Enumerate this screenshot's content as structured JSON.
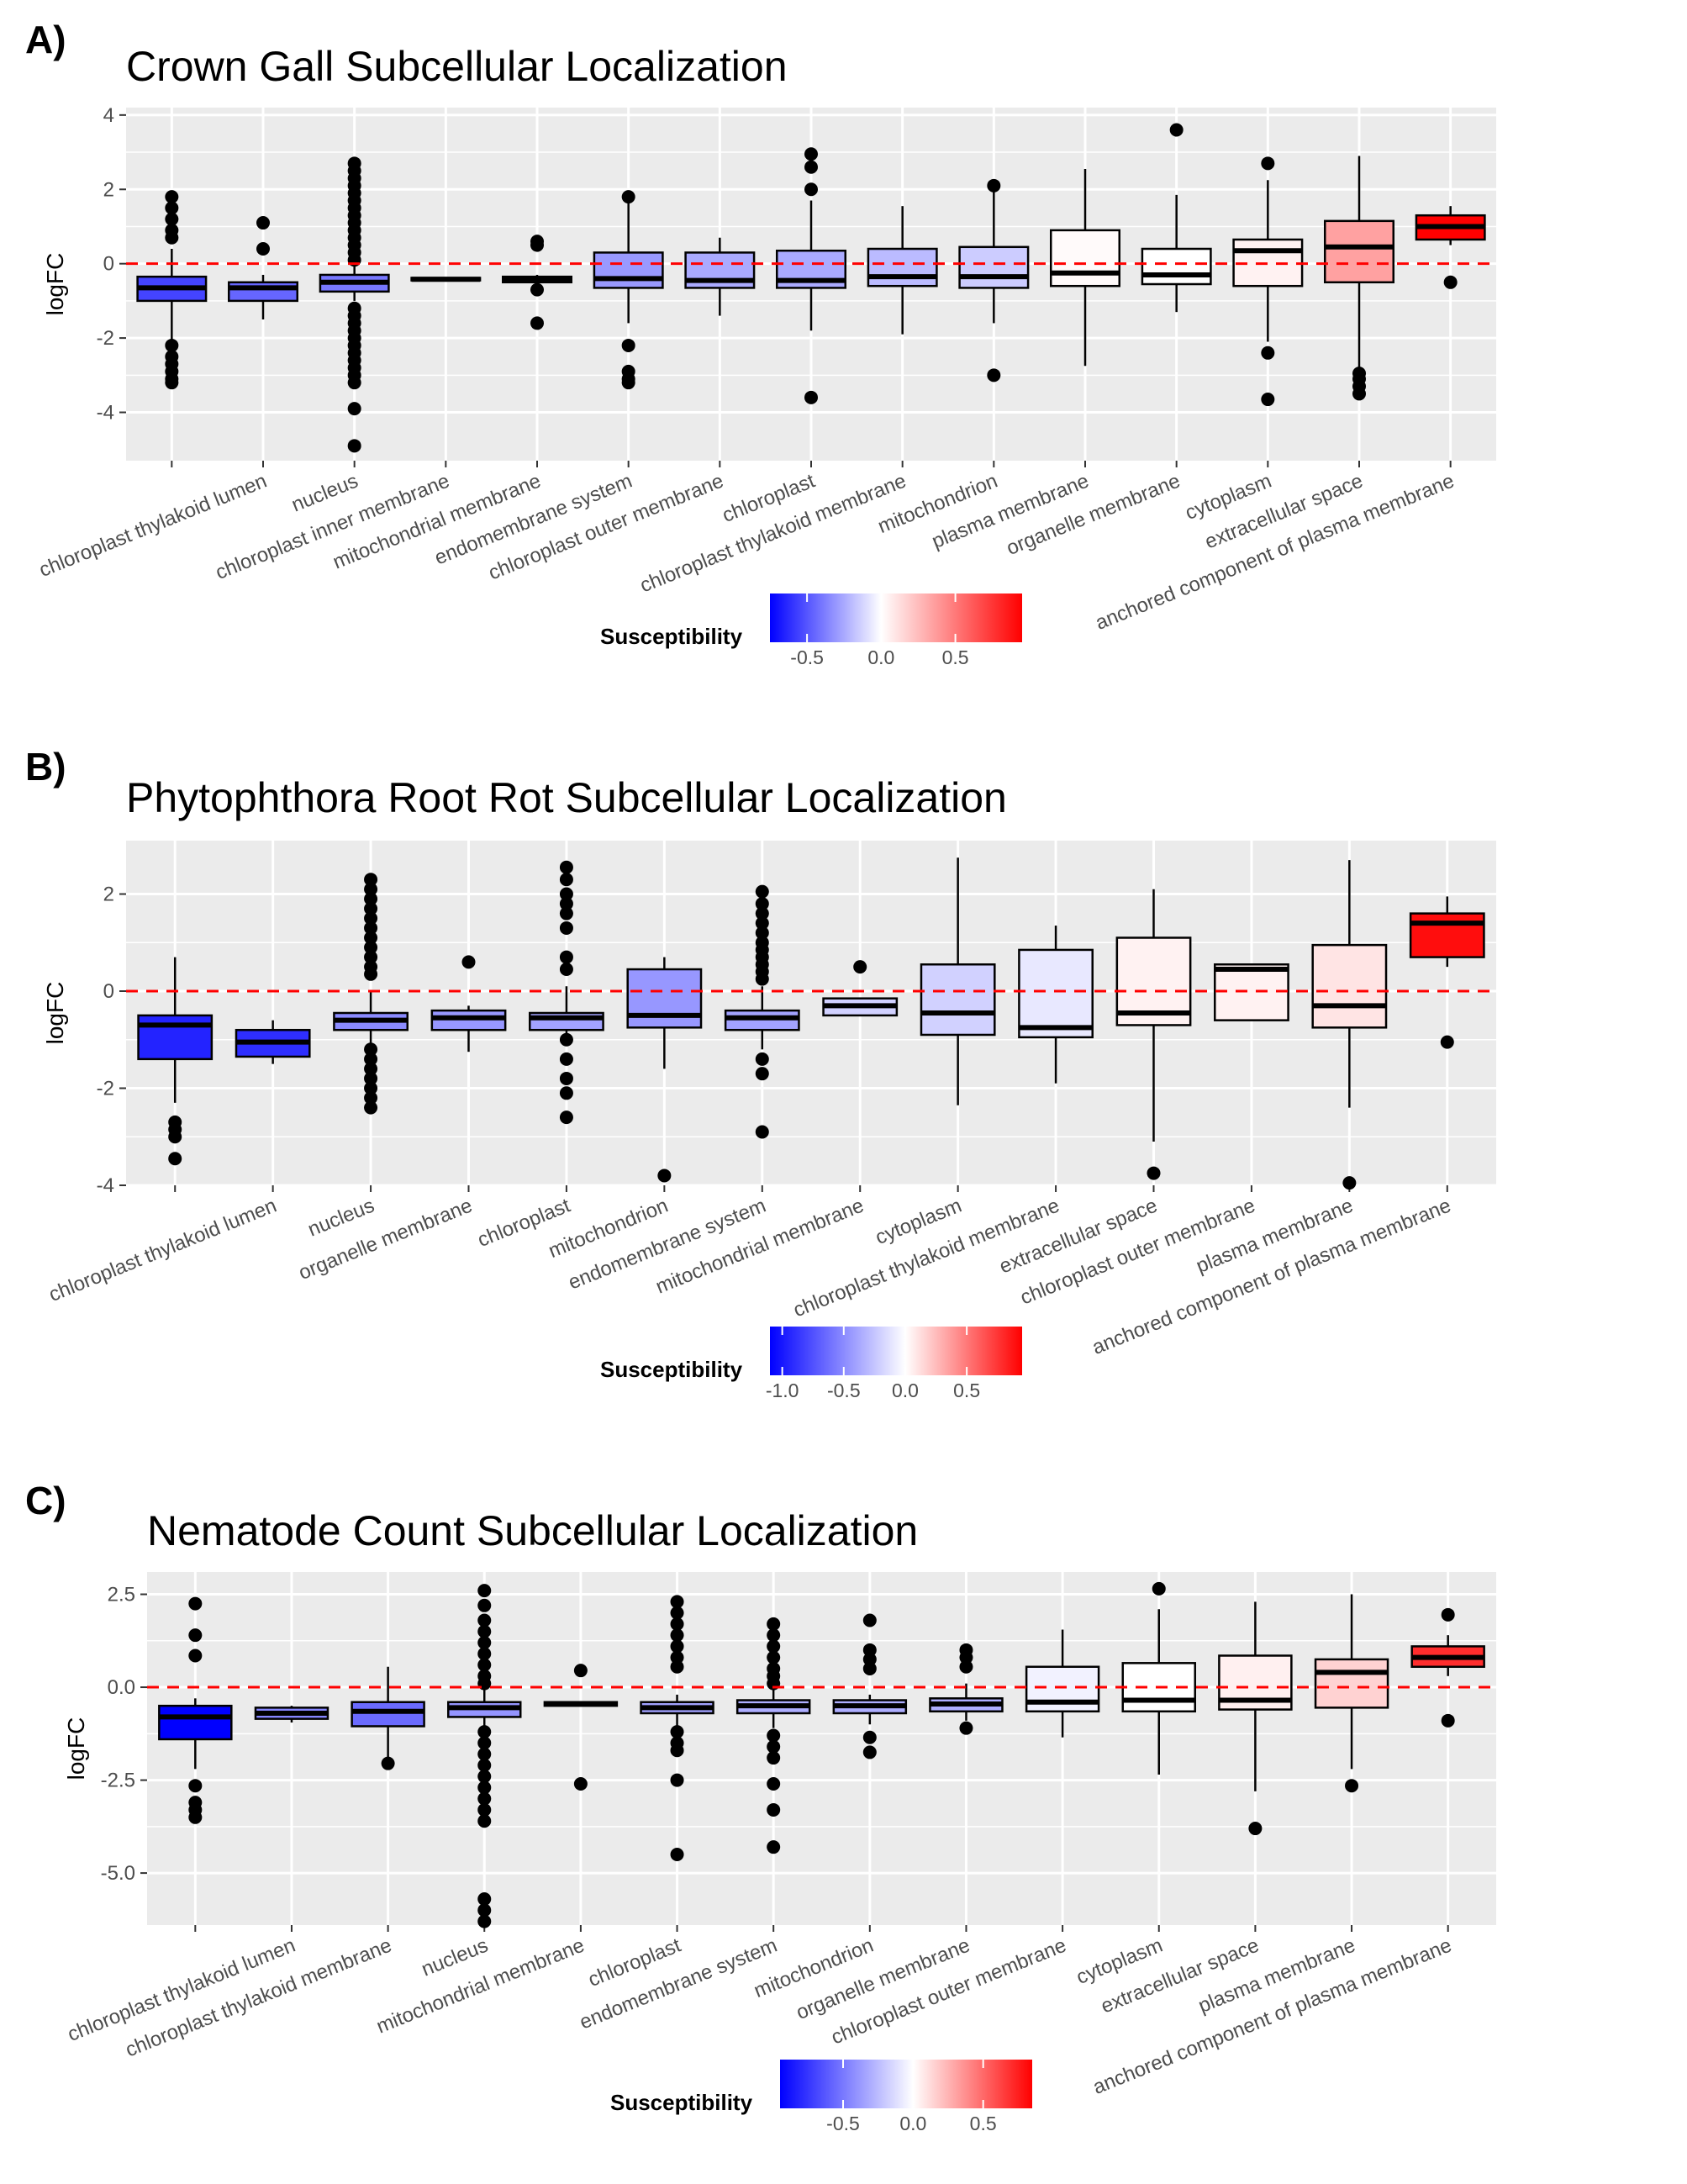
{
  "panels": [
    {
      "letter": "A)",
      "title": "Crown Gall Subcellular Localization",
      "legend_title": "Susceptibility"
    },
    {
      "letter": "B)",
      "title": "Phytophthora Root Rot Subcellular Localization",
      "legend_title": "Susceptibility"
    },
    {
      "letter": "C)",
      "title": "Nematode Count Subcellular Localization",
      "legend_title": "Susceptibility"
    }
  ],
  "colors": {
    "panel_bg": "#ebebeb",
    "grid": "#ffffff",
    "reference_line": "#ff0000",
    "low": "#0000ff",
    "mid": "#ffffff",
    "high": "#ff0000"
  },
  "chart_data": [
    {
      "type": "boxplot",
      "title": "Crown Gall Subcellular Localization",
      "ylabel": "logFC",
      "ylim": [
        -5.3,
        4.2
      ],
      "yticks": [
        4,
        2,
        0,
        -2,
        -4
      ],
      "reference_line_y": 0,
      "legend": {
        "title": "Susceptibility",
        "range": [
          -0.75,
          0.95
        ],
        "ticks": [
          -0.5,
          0.0,
          0.5
        ],
        "tick_labels": [
          "-0.5",
          "0.0",
          "0.5"
        ]
      },
      "categories": [
        "",
        "chloroplast thylakoid lumen",
        "nucleus",
        "chloroplast inner membrane",
        "mitochondrial membrane",
        "endomembrane system",
        "chloroplast outer membrane",
        "chloroplast",
        "chloroplast thylakoid membrane",
        "mitochondrion",
        "plasma membrane",
        "organelle membrane",
        "cytoplasm",
        "extracellular space",
        "anchored component of plasma membrane"
      ],
      "boxes": [
        {
          "q1": -1.0,
          "median": -0.65,
          "q3": -0.35,
          "wmin": -2.1,
          "wmax": 0.4,
          "outliers": [
            1.8,
            1.5,
            1.2,
            0.9,
            0.7,
            -2.2,
            -2.5,
            -2.7,
            -2.9,
            -3.1,
            -3.2
          ],
          "susceptibility": -0.55
        },
        {
          "q1": -1.0,
          "median": -0.65,
          "q3": -0.5,
          "wmin": -1.5,
          "wmax": -0.3,
          "outliers": [
            1.1,
            0.4
          ],
          "susceptibility": -0.45
        },
        {
          "q1": -0.75,
          "median": -0.5,
          "q3": -0.3,
          "wmin": -1.0,
          "wmax": 0.0,
          "outliers": [
            2.7,
            2.5,
            2.3,
            2.1,
            1.9,
            1.7,
            1.5,
            1.3,
            1.1,
            0.9,
            0.7,
            0.5,
            0.3,
            0.1,
            -1.2,
            -1.4,
            -1.6,
            -1.8,
            -2.0,
            -2.2,
            -2.4,
            -2.6,
            -2.8,
            -3.0,
            -3.2,
            -3.9,
            -4.9
          ],
          "susceptibility": -0.4
        },
        {
          "q1": -0.45,
          "median": -0.42,
          "q3": -0.38,
          "wmin": -0.45,
          "wmax": -0.38,
          "outliers": [],
          "susceptibility": -0.35
        },
        {
          "q1": -0.5,
          "median": -0.42,
          "q3": -0.35,
          "wmin": -0.5,
          "wmax": -0.3,
          "outliers": [
            0.6,
            0.5,
            -0.7,
            -1.6
          ],
          "susceptibility": -0.3
        },
        {
          "q1": -0.65,
          "median": -0.4,
          "q3": 0.3,
          "wmin": -1.6,
          "wmax": 1.7,
          "outliers": [
            1.8,
            -2.2,
            -2.9,
            -3.1,
            -3.2
          ],
          "susceptibility": -0.3
        },
        {
          "q1": -0.65,
          "median": -0.45,
          "q3": 0.3,
          "wmin": -1.4,
          "wmax": 0.7,
          "outliers": [],
          "susceptibility": -0.25
        },
        {
          "q1": -0.65,
          "median": -0.45,
          "q3": 0.35,
          "wmin": -1.8,
          "wmax": 1.7,
          "outliers": [
            2.95,
            2.6,
            2.0,
            -3.6
          ],
          "susceptibility": -0.25
        },
        {
          "q1": -0.6,
          "median": -0.35,
          "q3": 0.4,
          "wmin": -1.9,
          "wmax": 1.55,
          "outliers": [],
          "susceptibility": -0.2
        },
        {
          "q1": -0.65,
          "median": -0.35,
          "q3": 0.45,
          "wmin": -1.6,
          "wmax": 2.0,
          "outliers": [
            2.1,
            -3.0
          ],
          "susceptibility": -0.15
        },
        {
          "q1": -0.6,
          "median": -0.25,
          "q3": 0.9,
          "wmin": -2.75,
          "wmax": 2.55,
          "outliers": [],
          "susceptibility": 0.02
        },
        {
          "q1": -0.55,
          "median": -0.3,
          "q3": 0.4,
          "wmin": -1.3,
          "wmax": 1.85,
          "outliers": [
            3.6
          ],
          "susceptibility": 0.0
        },
        {
          "q1": -0.6,
          "median": 0.35,
          "q3": 0.65,
          "wmin": -2.1,
          "wmax": 2.25,
          "outliers": [
            2.7,
            -2.4,
            -3.65
          ],
          "susceptibility": 0.05
        },
        {
          "q1": -0.5,
          "median": 0.45,
          "q3": 1.15,
          "wmin": -2.9,
          "wmax": 2.9,
          "outliers": [
            -2.95,
            -3.1,
            -3.3,
            -3.5
          ],
          "susceptibility": 0.35
        },
        {
          "q1": 0.65,
          "median": 1.0,
          "q3": 1.3,
          "wmin": 0.5,
          "wmax": 1.55,
          "outliers": [
            -0.5
          ],
          "susceptibility": 0.95
        }
      ]
    },
    {
      "type": "boxplot",
      "title": "Phytophthora Root Rot Subcellular Localization",
      "ylabel": "logFC",
      "ylim": [
        -4.0,
        3.1
      ],
      "yticks": [
        2,
        0,
        -2,
        -4
      ],
      "reference_line_y": 0,
      "legend": {
        "title": "Susceptibility",
        "range": [
          -1.1,
          0.95
        ],
        "ticks": [
          -1.0,
          -0.5,
          0.0,
          0.5
        ],
        "tick_labels": [
          "-1.0",
          "-0.5",
          "0.0",
          "0.5"
        ]
      },
      "categories": [
        "",
        "chloroplast thylakoid lumen",
        "nucleus",
        "organelle membrane",
        "chloroplast",
        "mitochondrion",
        "endomembrane system",
        "mitochondrial membrane",
        "cytoplasm",
        "chloroplast thylakoid membrane",
        "extracellular space",
        "chloroplast outer membrane",
        "plasma membrane",
        "anchored component of plasma membrane"
      ],
      "boxes": [
        {
          "q1": -1.4,
          "median": -0.7,
          "q3": -0.5,
          "wmin": -2.3,
          "wmax": 0.7,
          "outliers": [
            -2.7,
            -2.85,
            -3.0,
            -3.45
          ],
          "susceptibility": -0.95
        },
        {
          "q1": -1.35,
          "median": -1.05,
          "q3": -0.8,
          "wmin": -1.5,
          "wmax": -0.6,
          "outliers": [],
          "susceptibility": -0.9
        },
        {
          "q1": -0.8,
          "median": -0.6,
          "q3": -0.45,
          "wmin": -1.3,
          "wmax": 0.0,
          "outliers": [
            2.3,
            2.1,
            1.9,
            1.7,
            1.5,
            1.3,
            1.1,
            0.9,
            0.7,
            0.5,
            0.35,
            -1.2,
            -1.4,
            -1.6,
            -1.8,
            -2.0,
            -2.2,
            -2.4
          ],
          "susceptibility": -0.5
        },
        {
          "q1": -0.8,
          "median": -0.55,
          "q3": -0.4,
          "wmin": -1.25,
          "wmax": -0.3,
          "outliers": [
            0.6
          ],
          "susceptibility": -0.45
        },
        {
          "q1": -0.8,
          "median": -0.55,
          "q3": -0.45,
          "wmin": -1.1,
          "wmax": 0.1,
          "outliers": [
            2.55,
            2.3,
            2.0,
            1.8,
            1.6,
            1.3,
            0.7,
            0.45,
            -1.0,
            -1.4,
            -1.8,
            -2.1,
            -2.6
          ],
          "susceptibility": -0.4
        },
        {
          "q1": -0.75,
          "median": -0.5,
          "q3": 0.45,
          "wmin": -1.6,
          "wmax": 0.7,
          "outliers": [
            -3.8
          ],
          "susceptibility": -0.45
        },
        {
          "q1": -0.8,
          "median": -0.55,
          "q3": -0.4,
          "wmin": -1.2,
          "wmax": 0.1,
          "outliers": [
            2.05,
            1.8,
            1.6,
            1.4,
            1.2,
            1.0,
            0.85,
            0.7,
            0.55,
            0.4,
            0.25,
            -1.4,
            -1.7,
            -2.9
          ],
          "susceptibility": -0.4
        },
        {
          "q1": -0.5,
          "median": -0.3,
          "q3": -0.15,
          "wmin": -0.5,
          "wmax": -0.15,
          "outliers": [
            0.5
          ],
          "susceptibility": -0.2
        },
        {
          "q1": -0.9,
          "median": -0.45,
          "q3": 0.55,
          "wmin": -2.35,
          "wmax": 2.75,
          "outliers": [],
          "susceptibility": -0.2
        },
        {
          "q1": -0.95,
          "median": -0.75,
          "q3": 0.85,
          "wmin": -1.9,
          "wmax": 1.35,
          "outliers": [],
          "susceptibility": -0.1
        },
        {
          "q1": -0.7,
          "median": -0.45,
          "q3": 1.1,
          "wmin": -3.1,
          "wmax": 2.1,
          "outliers": [
            -3.75
          ],
          "susceptibility": 0.05
        },
        {
          "q1": -0.6,
          "median": 0.45,
          "q3": 0.55,
          "wmin": -0.6,
          "wmax": 0.55,
          "outliers": [],
          "susceptibility": 0.05
        },
        {
          "q1": -0.75,
          "median": -0.3,
          "q3": 0.95,
          "wmin": -2.4,
          "wmax": 2.7,
          "outliers": [
            -3.95
          ],
          "susceptibility": 0.1
        },
        {
          "q1": 0.7,
          "median": 1.4,
          "q3": 1.6,
          "wmin": 0.5,
          "wmax": 1.95,
          "outliers": [
            -1.05
          ],
          "susceptibility": 0.9
        }
      ]
    },
    {
      "type": "boxplot",
      "title": "Nematode Count Subcellular Localization",
      "ylabel": "logFC",
      "ylim": [
        -6.4,
        3.1
      ],
      "yticks": [
        2.5,
        0.0,
        -2.5,
        -5.0
      ],
      "ytick_labels": [
        "2.5",
        "0.0",
        "-2.5",
        "-5.0"
      ],
      "reference_line_y": 0,
      "legend": {
        "title": "Susceptibility",
        "range": [
          -0.95,
          0.85
        ],
        "ticks": [
          -0.5,
          0.0,
          0.5
        ],
        "tick_labels": [
          "-0.5",
          "0.0",
          "0.5"
        ]
      },
      "categories": [
        "",
        "chloroplast thylakoid lumen",
        "chloroplast thylakoid membrane",
        "nucleus",
        "mitochondrial membrane",
        "chloroplast",
        "endomembrane system",
        "mitochondrion",
        "organelle membrane",
        "chloroplast outer membrane",
        "cytoplasm",
        "extracellular space",
        "plasma membrane",
        "anchored component of plasma membrane"
      ],
      "boxes": [
        {
          "q1": -1.4,
          "median": -0.8,
          "q3": -0.5,
          "wmin": -2.2,
          "wmax": -0.3,
          "outliers": [
            2.25,
            1.4,
            0.85,
            -2.65,
            -3.1,
            -3.3,
            -3.5
          ],
          "susceptibility": -0.95
        },
        {
          "q1": -0.85,
          "median": -0.7,
          "q3": -0.55,
          "wmin": -0.95,
          "wmax": -0.5,
          "outliers": [],
          "susceptibility": -0.45
        },
        {
          "q1": -1.05,
          "median": -0.65,
          "q3": -0.4,
          "wmin": -1.9,
          "wmax": 0.55,
          "outliers": [
            -2.05
          ],
          "susceptibility": -0.55
        },
        {
          "q1": -0.8,
          "median": -0.55,
          "q3": -0.4,
          "wmin": -1.2,
          "wmax": 0.0,
          "outliers": [
            2.6,
            2.2,
            1.8,
            1.5,
            1.2,
            0.9,
            0.6,
            0.3,
            0.1,
            -1.2,
            -1.5,
            -1.8,
            -2.1,
            -2.4,
            -2.7,
            -3.0,
            -3.3,
            -3.6,
            -5.7,
            -6.0,
            -6.3
          ],
          "susceptibility": -0.4
        },
        {
          "q1": -0.5,
          "median": -0.45,
          "q3": -0.4,
          "wmin": -0.5,
          "wmax": -0.4,
          "outliers": [
            0.45,
            -2.6
          ],
          "susceptibility": -0.35
        },
        {
          "q1": -0.7,
          "median": -0.55,
          "q3": -0.4,
          "wmin": -1.1,
          "wmax": -0.2,
          "outliers": [
            2.3,
            2.0,
            1.7,
            1.4,
            1.1,
            0.8,
            0.55,
            -1.2,
            -1.5,
            -1.7,
            -2.5,
            -4.5
          ],
          "susceptibility": -0.35
        },
        {
          "q1": -0.7,
          "median": -0.5,
          "q3": -0.35,
          "wmin": -1.1,
          "wmax": 0.0,
          "outliers": [
            1.7,
            1.4,
            1.1,
            0.8,
            0.5,
            0.3,
            0.1,
            -1.3,
            -1.6,
            -1.9,
            -2.6,
            -3.3,
            -4.3
          ],
          "susceptibility": -0.3
        },
        {
          "q1": -0.7,
          "median": -0.5,
          "q3": -0.35,
          "wmin": -1.0,
          "wmax": -0.2,
          "outliers": [
            1.8,
            1.0,
            0.75,
            0.5,
            -1.35,
            -1.75
          ],
          "susceptibility": -0.3
        },
        {
          "q1": -0.65,
          "median": -0.45,
          "q3": -0.3,
          "wmin": -0.9,
          "wmax": 0.1,
          "outliers": [
            1.0,
            0.8,
            0.55,
            -1.1
          ],
          "susceptibility": -0.3
        },
        {
          "q1": -0.65,
          "median": -0.4,
          "q3": 0.55,
          "wmin": -1.35,
          "wmax": 1.55,
          "outliers": [],
          "susceptibility": -0.05
        },
        {
          "q1": -0.65,
          "median": -0.35,
          "q3": 0.65,
          "wmin": -2.35,
          "wmax": 2.1,
          "outliers": [
            2.65
          ],
          "susceptibility": 0.0
        },
        {
          "q1": -0.6,
          "median": -0.35,
          "q3": 0.85,
          "wmin": -2.8,
          "wmax": 2.3,
          "outliers": [
            -3.8
          ],
          "susceptibility": 0.05
        },
        {
          "q1": -0.55,
          "median": 0.4,
          "q3": 0.75,
          "wmin": -2.2,
          "wmax": 2.5,
          "outliers": [
            -2.65
          ],
          "susceptibility": 0.15
        },
        {
          "q1": 0.55,
          "median": 0.8,
          "q3": 1.1,
          "wmin": 0.3,
          "wmax": 1.4,
          "outliers": [
            1.95,
            -0.9
          ],
          "susceptibility": 0.7
        }
      ]
    }
  ]
}
